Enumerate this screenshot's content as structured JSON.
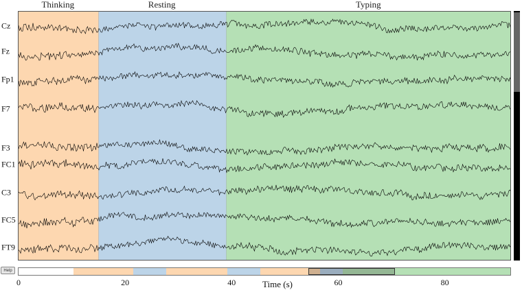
{
  "annotations": [
    {
      "label": "Thinking",
      "color": "#fdd7b0",
      "onset": 0,
      "offset": 15.0
    },
    {
      "label": "Resting",
      "color": "#bcd4e8",
      "onset": 15.0,
      "offset": 38.9
    },
    {
      "label": "Typing",
      "color": "#b5e0b5",
      "onset": 38.9,
      "offset": 92.3
    }
  ],
  "channels": [
    "Cz",
    "Fz",
    "Fp1",
    "F7",
    "F3",
    "FC1",
    "C3",
    "FC5",
    "FT9"
  ],
  "view": {
    "start": 0,
    "end": 92.3
  },
  "overview": {
    "duration": 92.3,
    "segments": [
      {
        "start": 0,
        "end": 10.3,
        "color": "#ffffff"
      },
      {
        "start": 10.3,
        "end": 21.5,
        "color": "#fdd7b0"
      },
      {
        "start": 21.5,
        "end": 27.7,
        "color": "#bcd4e8"
      },
      {
        "start": 27.7,
        "end": 39.2,
        "color": "#fdd7b0"
      },
      {
        "start": 39.2,
        "end": 45.4,
        "color": "#bcd4e8"
      },
      {
        "start": 45.4,
        "end": 56.6,
        "color": "#fdd7b0"
      },
      {
        "start": 56.6,
        "end": 60.8,
        "color": "#bcd4e8"
      },
      {
        "start": 60.8,
        "end": 92.3,
        "color": "#b5e0b5"
      }
    ],
    "window": {
      "start": 54.4,
      "end": 70.6
    },
    "ticks": [
      "0",
      "20",
      "40",
      "60",
      "80"
    ]
  },
  "x_axis_label": "Time (s)",
  "help_label": "Help",
  "scrollbar": {
    "thumb_fraction": 0.32
  },
  "trace_color": "#000000"
}
